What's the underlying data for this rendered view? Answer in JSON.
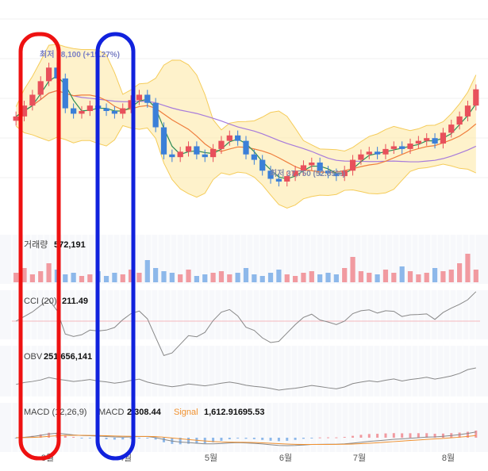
{
  "chart_data": {
    "type": "candlestick-with-indicators",
    "x_axis": {
      "ticks": [
        "3월",
        "4월",
        "5월",
        "6월",
        "7월",
        "8월"
      ]
    },
    "price": {
      "max_annotation": "최저 68,100 (+15.27%)",
      "min_annotation": "최저 37,750 (52.85%)",
      "close_approx": [
        51000,
        53000,
        55000,
        57500,
        60000,
        58000,
        52500,
        51500,
        52000,
        53000,
        52500,
        52000,
        51500,
        52500,
        54000,
        55000,
        53500,
        49000,
        44000,
        43500,
        44500,
        45500,
        44000,
        43500,
        45000,
        46500,
        47500,
        46500,
        44000,
        43000,
        41000,
        39500,
        39000,
        40000,
        41000,
        42000,
        42500,
        41000,
        40500,
        40000,
        41000,
        43000,
        44000,
        44500,
        44000,
        45000,
        45500,
        45000,
        46000,
        46500,
        47000,
        46000,
        48000,
        49500,
        51000,
        53000,
        56000
      ],
      "overlays": [
        "bollinger-band",
        "moving-average-short",
        "moving-average-mid",
        "moving-average-long"
      ]
    },
    "volume": {
      "label": "거래량",
      "value": "572,191",
      "bars_approx": [
        6,
        9,
        5,
        7,
        12,
        8,
        5,
        6,
        4,
        5,
        7,
        4,
        6,
        5,
        8,
        6,
        14,
        9,
        7,
        6,
        5,
        8,
        4,
        5,
        6,
        7,
        5,
        6,
        9,
        5,
        4,
        6,
        8,
        5,
        4,
        6,
        7,
        5,
        6,
        5,
        9,
        16,
        7,
        6,
        5,
        8,
        6,
        10,
        7,
        5,
        6,
        9,
        7,
        8,
        12,
        18,
        8
      ]
    },
    "cci": {
      "label": "CCI (20)",
      "value": "211.49"
    },
    "obv": {
      "label": "OBV",
      "value": "251,656,141"
    },
    "macd": {
      "label": "MACD (12,26,9)",
      "macd_label": "MACD",
      "macd_value": "2,308.44",
      "signal_label": "Signal",
      "signal_value": "1,612.91695.53"
    }
  },
  "colors": {
    "up": "#e8505b",
    "down": "#3b7fd8",
    "band": "#fde9a8",
    "band_line": "#f5cc5a",
    "ma_short": "#2e8b57",
    "ma_mid": "#ef7d3c",
    "ma_long": "#a77bdb",
    "indicator_line": "#888888",
    "signal_orange": "#f0912f",
    "highlight_red": "#ee1111",
    "highlight_blue": "#1122dd"
  },
  "highlights": [
    {
      "name": "red-highlight-oval",
      "color": "#ee1111"
    },
    {
      "name": "blue-highlight-oval",
      "color": "#1122dd"
    }
  ]
}
